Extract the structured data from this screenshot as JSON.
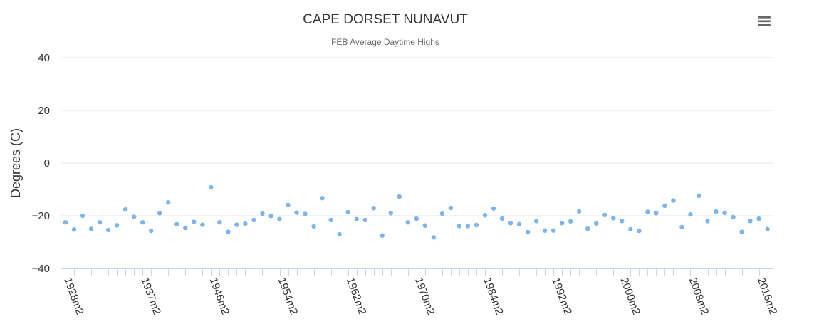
{
  "chart_data": {
    "type": "scatter",
    "title": "CAPE DORSET NUNAVUT",
    "subtitle": "FEB Average Daytime Highs",
    "ylabel": "Degrees (C)",
    "xlabel": "",
    "ylim": [
      -40,
      40
    ],
    "yticks": [
      40,
      20,
      0,
      -20,
      -40
    ],
    "grid": true,
    "legend": "none",
    "point_color": "#7cb5ec",
    "x_tick_labels": [
      {
        "index": 0,
        "label": "1928m2"
      },
      {
        "index": 9,
        "label": "1937m2"
      },
      {
        "index": 17,
        "label": "1946m2"
      },
      {
        "index": 25,
        "label": "1954m2"
      },
      {
        "index": 33,
        "label": "1962m2"
      },
      {
        "index": 41,
        "label": "1970m2"
      },
      {
        "index": 49,
        "label": "1984m2"
      },
      {
        "index": 57,
        "label": "1992m2"
      },
      {
        "index": 65,
        "label": "2000m2"
      },
      {
        "index": 73,
        "label": "2008m2"
      },
      {
        "index": 81,
        "label": "2016m2"
      }
    ],
    "values": [
      -22.5,
      -25.2,
      -20.0,
      -25.0,
      -22.5,
      -25.4,
      -23.6,
      -17.6,
      -20.4,
      -22.5,
      -25.7,
      -19.0,
      -14.9,
      -23.2,
      -24.6,
      -22.3,
      -23.4,
      -9.2,
      -22.5,
      -26.1,
      -23.4,
      -23.0,
      -21.6,
      -19.2,
      -20.1,
      -21.3,
      -15.9,
      -18.8,
      -19.3,
      -24.0,
      -13.3,
      -21.6,
      -27.0,
      -18.6,
      -21.3,
      -21.6,
      -17.1,
      -27.5,
      -19.0,
      -12.7,
      -22.5,
      -21.1,
      -23.7,
      -28.2,
      -19.2,
      -17.0,
      -23.9,
      -23.9,
      -23.5,
      -19.8,
      -17.2,
      -21.1,
      -22.8,
      -23.2,
      -26.2,
      -22.0,
      -25.6,
      -25.6,
      -22.8,
      -22.1,
      -18.3,
      -24.9,
      -22.9,
      -19.7,
      -20.9,
      -22.0,
      -25.1,
      -25.7,
      -18.5,
      -19.0,
      -16.2,
      -14.2,
      -24.3,
      -19.5,
      -12.4,
      -22.0,
      -18.4,
      -18.9,
      -20.5,
      -26.1,
      -22.0,
      -21.1,
      -25.1
    ]
  },
  "menu": {
    "icon": "hamburger-menu-icon"
  }
}
